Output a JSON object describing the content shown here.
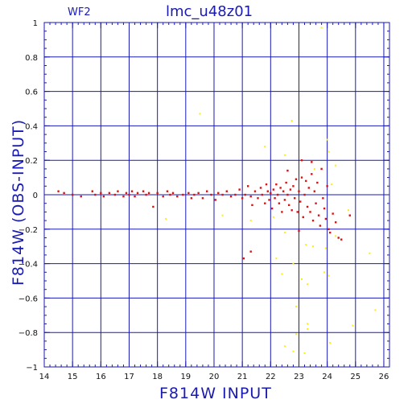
{
  "header": {
    "chip": "WF2",
    "title": "lmc_u48z01"
  },
  "chart_data": {
    "type": "scatter",
    "title": "lmc_u48z01",
    "chip": "WF2",
    "xlabel": "F814W INPUT",
    "ylabel": "F814W (OBS-INPUT)",
    "xlim": [
      14,
      26.2
    ],
    "ylim": [
      -1,
      1
    ],
    "xticks": [
      14,
      15,
      16,
      17,
      18,
      19,
      20,
      21,
      22,
      23,
      24,
      25,
      26
    ],
    "xtick_labels": [
      "14",
      "15",
      "16",
      "17",
      "18",
      "19",
      "20",
      "21",
      "22",
      "23",
      "24",
      "25",
      "26"
    ],
    "yticks": [
      -1,
      -0.8,
      -0.6,
      -0.4,
      -0.2,
      0,
      0.2,
      0.4,
      0.6,
      0.8,
      1
    ],
    "ytick_labels": [
      "−1",
      "−0.8",
      "−0.6",
      "−0.4",
      "−0.2",
      "0",
      "0.2",
      "0.4",
      "0.6",
      "0.8",
      "1"
    ],
    "grid": true,
    "colors": {
      "axis": "#1a1ab4",
      "grid": "#1a1ab4",
      "matched": "#dd1111",
      "unmatched": "#ffee00"
    },
    "series": [
      {
        "color": "#dd1111",
        "points": [
          [
            14.5,
            0.02
          ],
          [
            14.7,
            0.01
          ],
          [
            15.0,
            0.0
          ],
          [
            15.3,
            -0.01
          ],
          [
            15.7,
            0.02
          ],
          [
            15.8,
            0.0
          ],
          [
            16.0,
            0.01
          ],
          [
            16.1,
            -0.01
          ],
          [
            16.3,
            0.01
          ],
          [
            16.5,
            0.0
          ],
          [
            16.6,
            0.02
          ],
          [
            16.8,
            -0.01
          ],
          [
            16.9,
            0.01
          ],
          [
            17.0,
            0.0
          ],
          [
            17.1,
            0.02
          ],
          [
            17.2,
            -0.01
          ],
          [
            17.3,
            0.01
          ],
          [
            17.5,
            0.02
          ],
          [
            17.6,
            0.0
          ],
          [
            17.7,
            0.01
          ],
          [
            17.85,
            -0.07
          ],
          [
            18.0,
            0.01
          ],
          [
            18.2,
            -0.01
          ],
          [
            18.35,
            0.02
          ],
          [
            18.45,
            0.0
          ],
          [
            18.55,
            0.01
          ],
          [
            18.7,
            -0.01
          ],
          [
            18.9,
            0.0
          ],
          [
            19.1,
            0.01
          ],
          [
            19.2,
            -0.02
          ],
          [
            19.3,
            0.0
          ],
          [
            19.45,
            0.01
          ],
          [
            19.6,
            -0.02
          ],
          [
            19.75,
            0.02
          ],
          [
            19.9,
            0.0
          ],
          [
            20.05,
            -0.03
          ],
          [
            20.15,
            0.01
          ],
          [
            20.3,
            0.0
          ],
          [
            20.45,
            0.02
          ],
          [
            20.6,
            -0.01
          ],
          [
            20.75,
            0.0
          ],
          [
            20.9,
            0.03
          ],
          [
            21.0,
            -0.02
          ],
          [
            21.1,
            0.0
          ],
          [
            21.2,
            0.05
          ],
          [
            21.3,
            -0.01
          ],
          [
            21.35,
            -0.06
          ],
          [
            21.45,
            0.02
          ],
          [
            21.55,
            -0.02
          ],
          [
            21.65,
            0.04
          ],
          [
            21.7,
            0.0
          ],
          [
            21.8,
            -0.05
          ],
          [
            21.85,
            0.06
          ],
          [
            21.9,
            0.02
          ],
          [
            21.95,
            -0.03
          ],
          [
            22.0,
            0.01
          ],
          [
            22.05,
            -0.08
          ],
          [
            22.1,
            0.03
          ],
          [
            22.15,
            -0.02
          ],
          [
            22.2,
            0.06
          ],
          [
            22.25,
            0.0
          ],
          [
            22.3,
            -0.05
          ],
          [
            22.35,
            0.04
          ],
          [
            22.4,
            -0.1
          ],
          [
            22.45,
            0.02
          ],
          [
            22.5,
            -0.03
          ],
          [
            22.55,
            0.07
          ],
          [
            22.6,
            0.0
          ],
          [
            22.65,
            -0.06
          ],
          [
            22.7,
            0.03
          ],
          [
            22.75,
            -0.09
          ],
          [
            22.8,
            0.05
          ],
          [
            22.85,
            -0.02
          ],
          [
            22.9,
            0.09
          ],
          [
            22.95,
            -0.1
          ],
          [
            23.0,
            0.02
          ],
          [
            23.05,
            -0.04
          ],
          [
            23.1,
            0.1
          ],
          [
            23.15,
            -0.13
          ],
          [
            23.2,
            0.0
          ],
          [
            23.25,
            0.08
          ],
          [
            23.3,
            -0.07
          ],
          [
            23.35,
            0.04
          ],
          [
            23.4,
            -0.1
          ],
          [
            23.45,
            0.12
          ],
          [
            23.5,
            -0.15
          ],
          [
            23.55,
            0.02
          ],
          [
            23.6,
            -0.05
          ],
          [
            23.65,
            0.07
          ],
          [
            23.7,
            -0.12
          ],
          [
            23.75,
            -0.18
          ],
          [
            23.8,
            0.15
          ],
          [
            23.85,
            -0.02
          ],
          [
            23.9,
            -0.08
          ],
          [
            23.95,
            -0.14
          ],
          [
            24.0,
            0.05
          ],
          [
            24.05,
            -0.2
          ],
          [
            24.1,
            -0.22
          ],
          [
            24.2,
            -0.11
          ],
          [
            24.3,
            -0.16
          ],
          [
            24.4,
            -0.25
          ],
          [
            24.5,
            -0.26
          ],
          [
            24.8,
            -0.12
          ],
          [
            22.6,
            0.14
          ],
          [
            23.1,
            0.2
          ],
          [
            23.45,
            0.19
          ],
          [
            21.3,
            -0.33
          ],
          [
            21.05,
            -0.37
          ],
          [
            23.0,
            -0.21
          ]
        ]
      },
      {
        "color": "#ffee00",
        "points": [
          [
            19.5,
            0.47
          ],
          [
            22.75,
            0.43
          ],
          [
            21.8,
            0.28
          ],
          [
            22.5,
            0.23
          ],
          [
            24.0,
            0.32
          ],
          [
            24.05,
            0.25
          ],
          [
            24.3,
            0.17
          ],
          [
            23.55,
            0.15
          ],
          [
            24.15,
            0.06
          ],
          [
            18.3,
            -0.14
          ],
          [
            20.3,
            -0.12
          ],
          [
            21.3,
            -0.15
          ],
          [
            22.1,
            -0.13
          ],
          [
            22.5,
            -0.22
          ],
          [
            23.25,
            -0.29
          ],
          [
            23.95,
            -0.31
          ],
          [
            23.5,
            -0.3
          ],
          [
            22.2,
            -0.37
          ],
          [
            22.8,
            -0.4
          ],
          [
            24.3,
            -0.24
          ],
          [
            22.4,
            -0.46
          ],
          [
            23.1,
            -0.49
          ],
          [
            23.3,
            -0.52
          ],
          [
            23.9,
            -0.45
          ],
          [
            24.05,
            -0.47
          ],
          [
            22.9,
            -0.65
          ],
          [
            23.3,
            -0.75
          ],
          [
            24.9,
            -0.76
          ],
          [
            25.7,
            -0.67
          ],
          [
            24.1,
            -0.86
          ],
          [
            22.5,
            -0.88
          ],
          [
            22.8,
            -0.91
          ],
          [
            23.2,
            -0.92
          ],
          [
            24.75,
            -0.09
          ],
          [
            25.5,
            -0.34
          ],
          [
            23.8,
            0.97
          ],
          [
            22.9,
            -0.81
          ],
          [
            23.3,
            -0.78
          ]
        ]
      }
    ]
  }
}
